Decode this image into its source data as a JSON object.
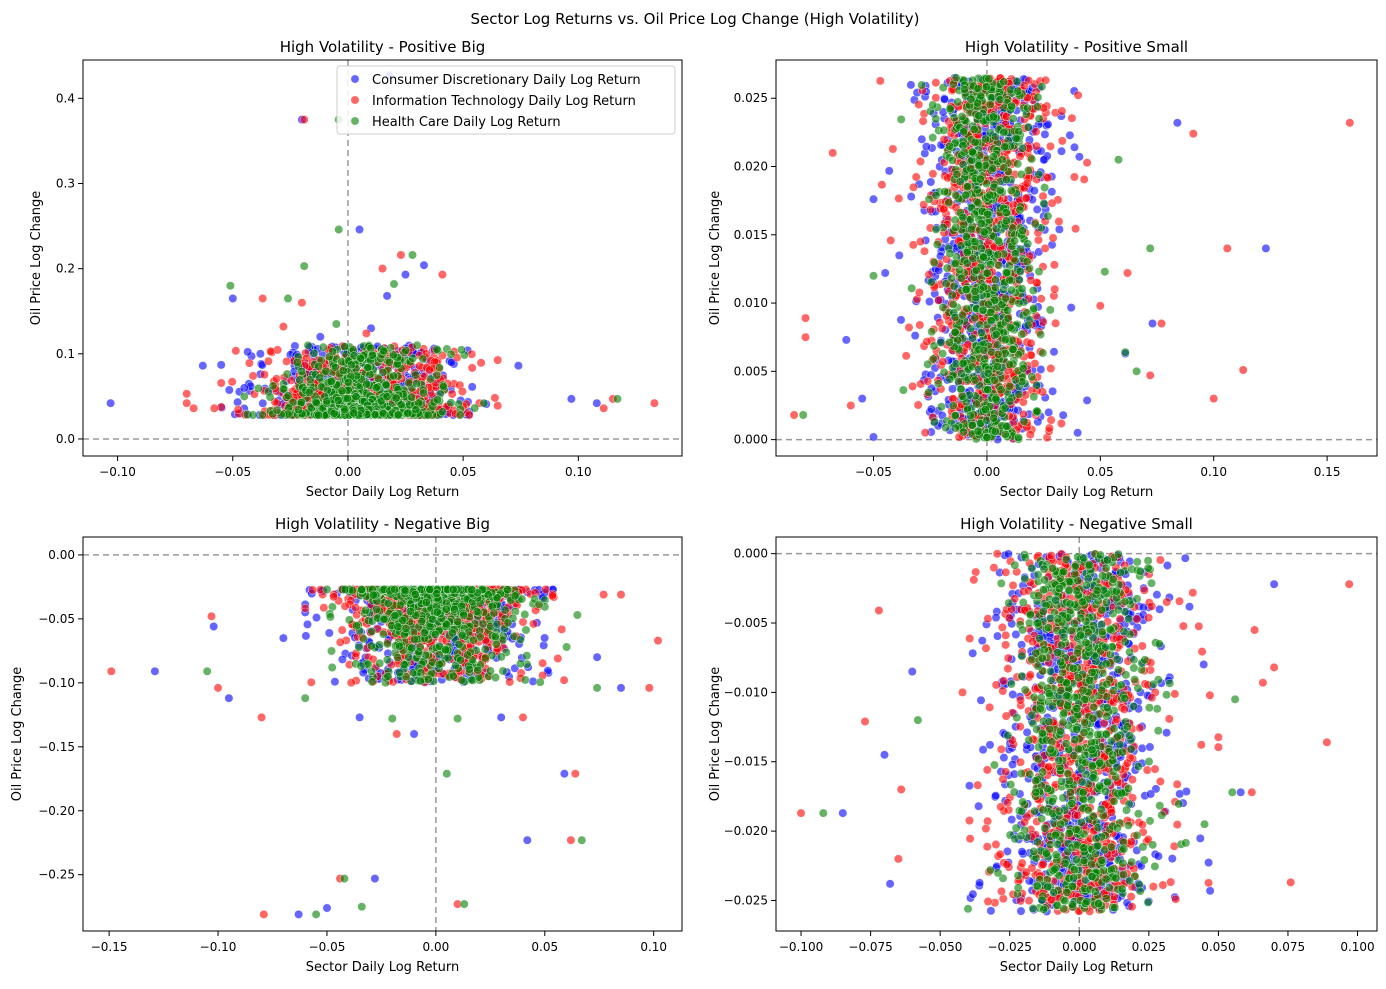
{
  "figure": {
    "suptitle": "Sector Log Returns vs. Oil Price Log Change (High Volatility)",
    "legend": [
      {
        "label": "Consumer Discretionary Daily Log Return",
        "color": "#0000ff"
      },
      {
        "label": "Information Technology Daily Log Return",
        "color": "#ff0000"
      },
      {
        "label": "Health Care Daily Log Return",
        "color": "#008000"
      }
    ]
  },
  "chart_data": [
    {
      "type": "scatter",
      "title": "High Volatility - Positive Big",
      "xlabel": "Sector Daily Log Return",
      "ylabel": "Oil Price Log Change",
      "xlim": [
        -0.115,
        0.145
      ],
      "ylim": [
        -0.02,
        0.445
      ],
      "xticks": [
        -0.1,
        -0.05,
        0.0,
        0.05,
        0.1
      ],
      "xtick_labels": [
        "−0.10",
        "−0.05",
        "0.00",
        "0.05",
        "0.10"
      ],
      "yticks": [
        0.0,
        0.1,
        0.2,
        0.3,
        0.4
      ],
      "ytick_labels": [
        "0.0",
        "0.1",
        "0.2",
        "0.3",
        "0.4"
      ],
      "legend": "upper right",
      "series": [
        {
          "name": "Consumer Discretionary Daily Log Return",
          "color": "#0000ff",
          "points": [
            [
              -0.103,
              0.042
            ],
            [
              -0.05,
              0.165
            ],
            [
              -0.063,
              0.086
            ],
            [
              -0.02,
              0.375
            ],
            [
              0.005,
              0.246
            ],
            [
              0.017,
              0.168
            ],
            [
              0.033,
              0.204
            ],
            [
              0.025,
              0.193
            ],
            [
              0.018,
              0.427
            ],
            [
              0.074,
              0.086
            ],
            [
              0.097,
              0.047
            ],
            [
              0.108,
              0.042
            ],
            [
              -0.038,
              0.1
            ],
            [
              0.052,
              0.104
            ],
            [
              -0.012,
              0.12
            ],
            [
              0.06,
              0.041
            ],
            [
              -0.045,
              0.06
            ],
            [
              0.03,
              0.075
            ],
            [
              0.01,
              0.13
            ],
            [
              0.045,
              0.09
            ]
          ]
        },
        {
          "name": "Information Technology Daily Log Return",
          "color": "#ff0000",
          "points": [
            [
              0.133,
              0.042
            ],
            [
              -0.07,
              0.053
            ],
            [
              -0.07,
              0.042
            ],
            [
              -0.067,
              0.036
            ],
            [
              -0.058,
              0.036
            ],
            [
              -0.037,
              0.165
            ],
            [
              0.023,
              0.216
            ],
            [
              0.041,
              0.193
            ],
            [
              0.015,
              0.2
            ],
            [
              -0.019,
              0.375
            ],
            [
              -0.028,
              0.132
            ],
            [
              0.111,
              0.036
            ],
            [
              0.115,
              0.047
            ],
            [
              0.057,
              0.042
            ],
            [
              0.034,
              0.1
            ],
            [
              -0.02,
              0.16
            ],
            [
              0.008,
              0.124
            ],
            [
              0.04,
              0.07
            ]
          ]
        },
        {
          "name": "Health Care Daily Log Return",
          "color": "#008000",
          "points": [
            [
              -0.051,
              0.18
            ],
            [
              -0.026,
              0.165
            ],
            [
              -0.019,
              0.203
            ],
            [
              -0.004,
              0.246
            ],
            [
              0.028,
              0.216
            ],
            [
              -0.004,
              0.375
            ],
            [
              0.117,
              0.047
            ],
            [
              0.02,
              0.182
            ],
            [
              0.059,
              0.042
            ],
            [
              -0.005,
              0.135
            ],
            [
              0.03,
              0.11
            ],
            [
              -0.045,
              0.05
            ]
          ]
        }
      ],
      "dense_clusters": [
        {
          "series": 0,
          "n": 650,
          "x": [
            -0.055,
            0.065
          ],
          "x_center": 0.005,
          "x_spread": 0.02,
          "y": [
            0.028,
            0.11
          ],
          "y_skew": 2.6
        },
        {
          "series": 1,
          "n": 650,
          "x": [
            -0.055,
            0.065
          ],
          "x_center": 0.005,
          "x_spread": 0.02,
          "y": [
            0.028,
            0.11
          ],
          "y_skew": 2.6
        },
        {
          "series": 2,
          "n": 650,
          "x": [
            -0.045,
            0.055
          ],
          "x_center": 0.005,
          "x_spread": 0.017,
          "y": [
            0.028,
            0.11
          ],
          "y_skew": 2.6
        }
      ]
    },
    {
      "type": "scatter",
      "title": "High Volatility - Positive Small",
      "xlabel": "Sector Daily Log Return",
      "ylabel": "Oil Price Log Change",
      "xlim": [
        -0.093,
        0.172
      ],
      "ylim": [
        -0.0012,
        0.0278
      ],
      "xticks": [
        -0.05,
        0.0,
        0.05,
        0.1,
        0.15
      ],
      "xtick_labels": [
        "−0.05",
        "0.00",
        "0.05",
        "0.10",
        "0.15"
      ],
      "yticks": [
        0.0,
        0.005,
        0.01,
        0.015,
        0.02,
        0.025
      ],
      "ytick_labels": [
        "0.000",
        "0.005",
        "0.010",
        "0.015",
        "0.020",
        "0.025"
      ],
      "series": [
        {
          "name": "Consumer Discretionary Daily Log Return",
          "color": "#0000ff",
          "points": [
            [
              0.123,
              0.014
            ],
            [
              0.084,
              0.0232
            ],
            [
              0.073,
              0.0085
            ],
            [
              0.061,
              0.0063
            ],
            [
              -0.062,
              0.0073
            ],
            [
              0.04,
              0.0005
            ],
            [
              -0.055,
              0.003
            ]
          ]
        },
        {
          "name": "Information Technology Daily Log Return",
          "color": "#ff0000",
          "points": [
            [
              0.16,
              0.0232
            ],
            [
              0.106,
              0.014
            ],
            [
              0.113,
              0.0051
            ],
            [
              0.1,
              0.003
            ],
            [
              0.091,
              0.0224
            ],
            [
              -0.085,
              0.0018
            ],
            [
              -0.08,
              0.0089
            ],
            [
              -0.08,
              0.0075
            ],
            [
              -0.068,
              0.021
            ],
            [
              0.077,
              0.0085
            ],
            [
              0.062,
              0.0122
            ],
            [
              0.05,
              0.0098
            ],
            [
              0.072,
              0.0047
            ],
            [
              -0.06,
              0.0025
            ]
          ]
        },
        {
          "name": "Health Care Daily Log Return",
          "color": "#008000",
          "points": [
            [
              0.072,
              0.014
            ],
            [
              0.058,
              0.0205
            ],
            [
              0.061,
              0.0064
            ],
            [
              0.066,
              0.005
            ],
            [
              -0.081,
              0.0018
            ],
            [
              0.052,
              0.0123
            ],
            [
              -0.05,
              0.012
            ]
          ]
        }
      ],
      "dense_clusters": [
        {
          "series": 0,
          "n": 750,
          "x": [
            -0.05,
            0.05
          ],
          "x_center": 0.0,
          "x_spread": 0.014,
          "y": [
            0.0,
            0.0265
          ],
          "y_skew": 1
        },
        {
          "series": 1,
          "n": 750,
          "x": [
            -0.05,
            0.05
          ],
          "x_center": 0.0,
          "x_spread": 0.014,
          "y": [
            0.0,
            0.0265
          ],
          "y_skew": 1
        },
        {
          "series": 2,
          "n": 750,
          "x": [
            -0.04,
            0.04
          ],
          "x_center": 0.0,
          "x_spread": 0.011,
          "y": [
            0.0,
            0.0265
          ],
          "y_skew": 1
        }
      ]
    },
    {
      "type": "scatter",
      "title": "High Volatility - Negative Big",
      "xlabel": "Sector Daily Log Return",
      "ylabel": "Oil Price Log Change",
      "xlim": [
        -0.162,
        0.113
      ],
      "ylim": [
        -0.294,
        0.014
      ],
      "xticks": [
        -0.15,
        -0.1,
        -0.05,
        0.0,
        0.05,
        0.1
      ],
      "xtick_labels": [
        "−0.15",
        "−0.10",
        "−0.05",
        "0.00",
        "0.05",
        "0.10"
      ],
      "yticks": [
        0.0,
        -0.05,
        -0.1,
        -0.15,
        -0.2,
        -0.25
      ],
      "ytick_labels": [
        "0.00",
        "−0.05",
        "−0.10",
        "−0.15",
        "−0.20",
        "−0.25"
      ],
      "series": [
        {
          "name": "Consumer Discretionary Daily Log Return",
          "color": "#0000ff",
          "points": [
            [
              -0.129,
              -0.091
            ],
            [
              -0.102,
              -0.056
            ],
            [
              -0.095,
              -0.112
            ],
            [
              -0.063,
              -0.281
            ],
            [
              -0.05,
              -0.276
            ],
            [
              -0.028,
              -0.253
            ],
            [
              0.042,
              -0.223
            ],
            [
              0.059,
              -0.171
            ],
            [
              0.085,
              -0.104
            ],
            [
              0.074,
              -0.08
            ],
            [
              -0.035,
              -0.127
            ],
            [
              0.03,
              -0.127
            ],
            [
              -0.01,
              -0.14
            ],
            [
              -0.07,
              -0.065
            ]
          ]
        },
        {
          "name": "Information Technology Daily Log Return",
          "color": "#ff0000",
          "points": [
            [
              -0.149,
              -0.091
            ],
            [
              -0.1,
              -0.104
            ],
            [
              -0.079,
              -0.281
            ],
            [
              -0.044,
              -0.253
            ],
            [
              0.01,
              -0.273
            ],
            [
              0.062,
              -0.223
            ],
            [
              0.064,
              -0.171
            ],
            [
              0.102,
              -0.067
            ],
            [
              0.098,
              -0.104
            ],
            [
              0.085,
              -0.031
            ],
            [
              0.077,
              -0.031
            ],
            [
              -0.08,
              -0.127
            ],
            [
              -0.103,
              -0.048
            ],
            [
              0.04,
              -0.127
            ],
            [
              -0.018,
              -0.14
            ]
          ]
        },
        {
          "name": "Health Care Daily Log Return",
          "color": "#008000",
          "points": [
            [
              -0.105,
              -0.091
            ],
            [
              -0.055,
              -0.281
            ],
            [
              -0.042,
              -0.253
            ],
            [
              -0.034,
              -0.275
            ],
            [
              0.013,
              -0.273
            ],
            [
              0.067,
              -0.223
            ],
            [
              0.005,
              -0.171
            ],
            [
              0.074,
              -0.104
            ],
            [
              0.065,
              -0.047
            ],
            [
              0.06,
              -0.072
            ],
            [
              -0.06,
              -0.112
            ],
            [
              -0.02,
              -0.128
            ],
            [
              0.01,
              -0.128
            ]
          ]
        }
      ],
      "dense_clusters": [
        {
          "series": 0,
          "n": 650,
          "x": [
            -0.06,
            0.06
          ],
          "x_center": 0.0,
          "x_spread": 0.021,
          "y": [
            -0.1,
            -0.027
          ],
          "y_skew": 2.6
        },
        {
          "series": 1,
          "n": 650,
          "x": [
            -0.06,
            0.06
          ],
          "x_center": 0.0,
          "x_spread": 0.021,
          "y": [
            -0.1,
            -0.027
          ],
          "y_skew": 2.6
        },
        {
          "series": 2,
          "n": 650,
          "x": [
            -0.05,
            0.05
          ],
          "x_center": 0.0,
          "x_spread": 0.018,
          "y": [
            -0.1,
            -0.027
          ],
          "y_skew": 2.6
        }
      ]
    },
    {
      "type": "scatter",
      "title": "High Volatility - Negative Small",
      "xlabel": "Sector Daily Log Return",
      "ylabel": "Oil Price Log Change",
      "xlim": [
        -0.109,
        0.107
      ],
      "ylim": [
        -0.0272,
        0.0012
      ],
      "xticks": [
        -0.1,
        -0.075,
        -0.05,
        -0.025,
        0.0,
        0.025,
        0.05,
        0.075,
        0.1
      ],
      "xtick_labels": [
        "−0.100",
        "−0.075",
        "−0.050",
        "−0.025",
        "0.000",
        "0.025",
        "0.050",
        "0.075",
        "0.100"
      ],
      "yticks": [
        0.0,
        -0.005,
        -0.01,
        -0.015,
        -0.02,
        -0.025
      ],
      "ytick_labels": [
        "0.000",
        "−0.005",
        "−0.010",
        "−0.015",
        "−0.020",
        "−0.025"
      ],
      "series": [
        {
          "name": "Consumer Discretionary Daily Log Return",
          "color": "#0000ff",
          "points": [
            [
              -0.085,
              -0.0187
            ],
            [
              -0.07,
              -0.0145
            ],
            [
              -0.068,
              -0.0238
            ],
            [
              0.07,
              -0.0022
            ],
            [
              0.047,
              -0.0243
            ],
            [
              0.058,
              -0.0172
            ],
            [
              -0.06,
              -0.0085
            ]
          ]
        },
        {
          "name": "Information Technology Daily Log Return",
          "color": "#ff0000",
          "points": [
            [
              -0.1,
              -0.0187
            ],
            [
              -0.077,
              -0.0121
            ],
            [
              -0.072,
              -0.0041
            ],
            [
              0.097,
              -0.0022
            ],
            [
              0.089,
              -0.0136
            ],
            [
              0.076,
              -0.0237
            ],
            [
              0.07,
              -0.0082
            ],
            [
              0.066,
              -0.0093
            ],
            [
              0.062,
              -0.0172
            ],
            [
              -0.064,
              -0.017
            ],
            [
              -0.065,
              -0.022
            ],
            [
              0.063,
              -0.0055
            ]
          ]
        },
        {
          "name": "Health Care Daily Log Return",
          "color": "#008000",
          "points": [
            [
              -0.092,
              -0.0187
            ],
            [
              -0.04,
              -0.0256
            ],
            [
              0.056,
              -0.0105
            ],
            [
              0.055,
              -0.0172
            ],
            [
              0.045,
              -0.0195
            ],
            [
              -0.058,
              -0.012
            ]
          ]
        }
      ],
      "dense_clusters": [
        {
          "series": 0,
          "n": 750,
          "x": [
            -0.05,
            0.05
          ],
          "x_center": 0.0,
          "x_spread": 0.015,
          "y": [
            -0.0258,
            0.0
          ],
          "y_skew": 1
        },
        {
          "series": 1,
          "n": 750,
          "x": [
            -0.05,
            0.05
          ],
          "x_center": 0.0,
          "x_spread": 0.015,
          "y": [
            -0.0258,
            0.0
          ],
          "y_skew": 1
        },
        {
          "series": 2,
          "n": 750,
          "x": [
            -0.04,
            0.04
          ],
          "x_center": 0.0,
          "x_spread": 0.012,
          "y": [
            -0.0258,
            0.0
          ],
          "y_skew": 1
        }
      ]
    }
  ]
}
